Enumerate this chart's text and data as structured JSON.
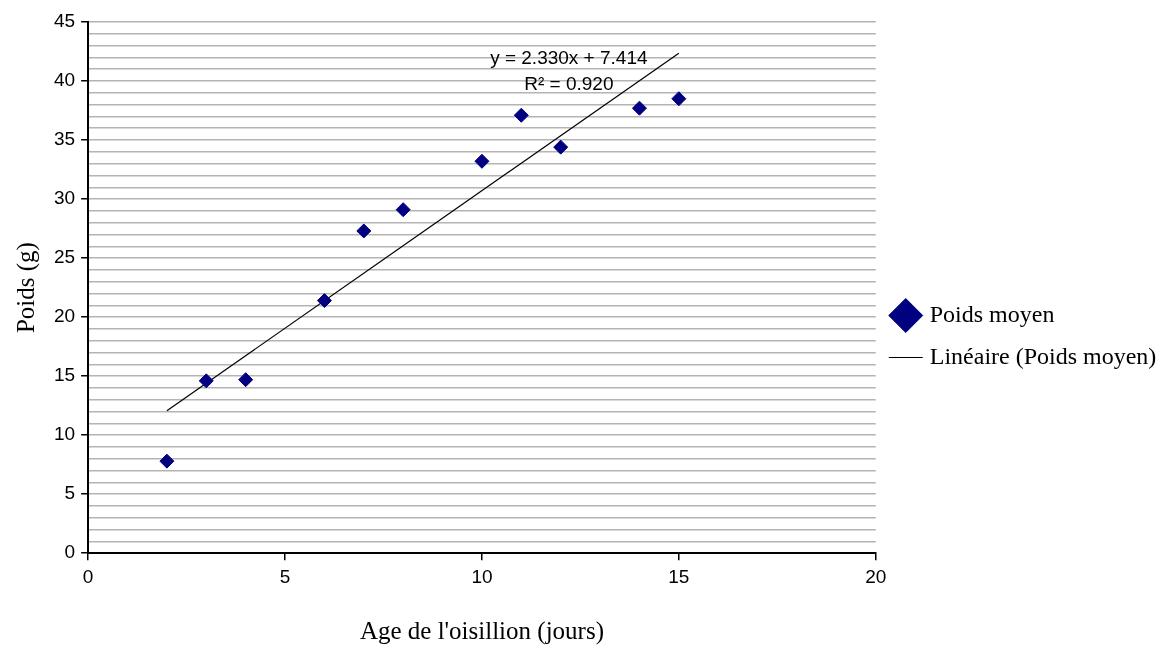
{
  "chart_data": {
    "type": "scatter",
    "xlabel": "Age de l'oisillion (jours)",
    "ylabel": "Poids (g)",
    "x": [
      2,
      3,
      4,
      6,
      7,
      8,
      10,
      11,
      12,
      14,
      15
    ],
    "series": [
      {
        "name": "Poids moyen",
        "color": "#000080",
        "values": [
          7.8,
          14.6,
          14.7,
          21.4,
          27.3,
          29.1,
          33.2,
          37.1,
          34.4,
          37.7,
          38.5
        ],
        "marker": "diamond"
      },
      {
        "name": "Linéaire (Poids moyen)",
        "type": "line",
        "color": "#000000",
        "x": [
          2,
          15
        ],
        "values": [
          12.07,
          42.36
        ],
        "marker": "none",
        "line_style": "solid"
      }
    ],
    "xlim": [
      0,
      20
    ],
    "xticks": [
      0,
      5,
      10,
      15,
      20
    ],
    "ylim": [
      0,
      45
    ],
    "yticks": [
      0,
      {
        "value": 1,
        "label": null
      },
      {
        "value": 2,
        "label": null
      },
      {
        "value": 3,
        "label": null
      },
      {
        "value": 4,
        "label": null
      },
      5,
      {
        "value": 6,
        "label": null
      },
      {
        "value": 7,
        "label": null
      },
      {
        "value": 8,
        "label": null
      },
      {
        "value": 9,
        "label": null
      },
      10,
      {
        "value": 11,
        "label": null
      },
      {
        "value": 12,
        "label": null
      },
      {
        "value": 13,
        "label": null
      },
      {
        "value": 14,
        "label": null
      },
      15,
      {
        "value": 16,
        "label": null
      },
      {
        "value": 17,
        "label": null
      },
      {
        "value": 18,
        "label": null
      },
      {
        "value": 19,
        "label": null
      },
      20,
      {
        "value": 21,
        "label": null
      },
      {
        "value": 22,
        "label": null
      },
      {
        "value": 23,
        "label": null
      },
      {
        "value": 24,
        "label": null
      },
      25,
      {
        "value": 26,
        "label": null
      },
      {
        "value": 27,
        "label": null
      },
      {
        "value": 28,
        "label": null
      },
      {
        "value": 29,
        "label": null
      },
      30,
      {
        "value": 31,
        "label": null
      },
      {
        "value": 32,
        "label": null
      },
      {
        "value": 33,
        "label": null
      },
      {
        "value": 34,
        "label": null
      },
      35,
      {
        "value": 36,
        "label": null
      },
      {
        "value": 37,
        "label": null
      },
      {
        "value": 38,
        "label": null
      },
      {
        "value": 39,
        "label": null
      },
      40,
      {
        "value": 41,
        "label": null
      },
      {
        "value": 42,
        "label": null
      },
      {
        "value": 43,
        "label": null
      },
      {
        "value": 44,
        "label": null
      },
      45
    ],
    "grid": "y",
    "legend": "right",
    "annotations": [
      "y = 2.330x + 7.414",
      "R² = 0.920"
    ]
  }
}
